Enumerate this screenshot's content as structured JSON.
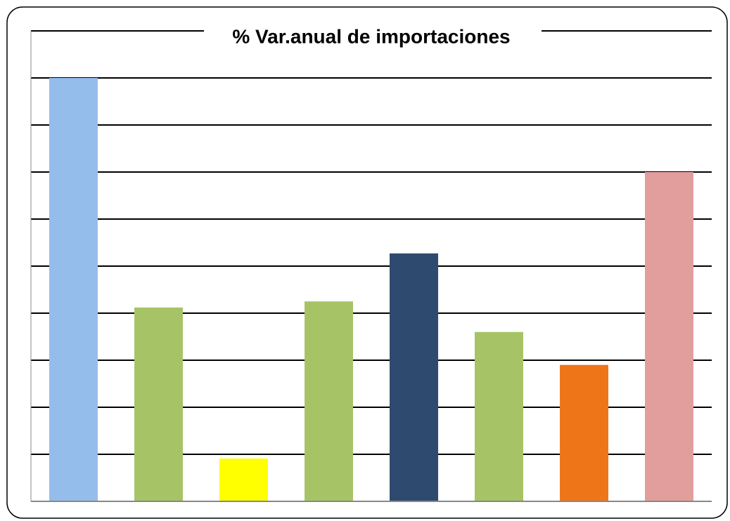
{
  "chart_data": {
    "type": "bar",
    "title": "% Var.anual de importaciones",
    "categories": [
      null,
      null,
      null,
      null,
      null,
      null,
      null,
      null
    ],
    "values": [
      9.0,
      4.12,
      0.91,
      4.25,
      5.27,
      3.6,
      2.9,
      7.0
    ],
    "colors": [
      "#95bdeb",
      "#a6c466",
      "#ffff00",
      "#a6c466",
      "#2e4a6e",
      "#a6c466",
      "#ee7619",
      "#e29e9d"
    ],
    "ylim": [
      0,
      10
    ],
    "yticks": [
      0,
      1,
      2,
      3,
      4,
      5,
      6,
      7,
      8,
      9,
      10
    ],
    "grid": true
  }
}
